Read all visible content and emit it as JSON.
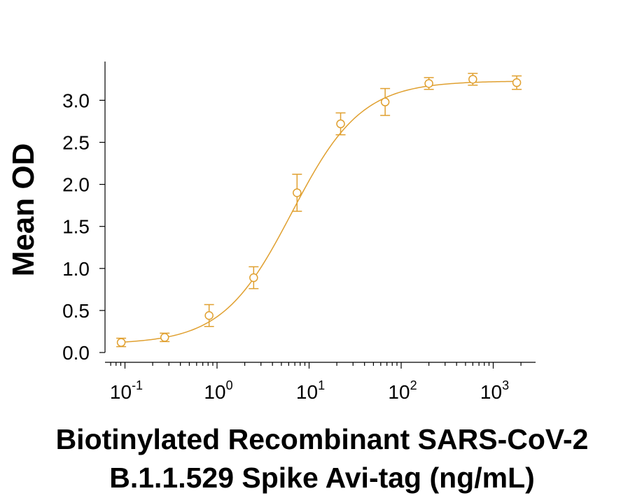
{
  "chart_data": {
    "type": "scatter",
    "title": "",
    "xlabel_lines": [
      "Biotinylated Recombinant SARS-CoV-2",
      "B.1.1.529 Spike Avi-tag (ng/mL)"
    ],
    "ylabel": "Mean OD",
    "x_scale": "log",
    "xlim": [
      0.06,
      3000
    ],
    "ylim": [
      0,
      3.5
    ],
    "x_ticks": [
      {
        "value": 0.1,
        "base": "10",
        "exp": "-1"
      },
      {
        "value": 1,
        "base": "10",
        "exp": "0"
      },
      {
        "value": 10,
        "base": "10",
        "exp": "1"
      },
      {
        "value": 100,
        "base": "10",
        "exp": "2"
      },
      {
        "value": 1000,
        "base": "10",
        "exp": "3"
      }
    ],
    "y_ticks": [
      "0.0",
      "0.5",
      "1.0",
      "1.5",
      "2.0",
      "2.5",
      "3.0"
    ],
    "grid": false,
    "color": "#E0A030",
    "series": [
      {
        "points": [
          {
            "x": 0.091,
            "y": 0.12,
            "err": 0.05
          },
          {
            "x": 0.27,
            "y": 0.18,
            "err": 0.05
          },
          {
            "x": 0.82,
            "y": 0.44,
            "err": 0.13
          },
          {
            "x": 2.5,
            "y": 0.89,
            "err": 0.13
          },
          {
            "x": 7.4,
            "y": 1.9,
            "err": 0.22
          },
          {
            "x": 22,
            "y": 2.72,
            "err": 0.13
          },
          {
            "x": 67,
            "y": 2.98,
            "err": 0.16
          },
          {
            "x": 200,
            "y": 3.2,
            "err": 0.07
          },
          {
            "x": 600,
            "y": 3.25,
            "err": 0.07
          },
          {
            "x": 1800,
            "y": 3.21,
            "err": 0.08
          }
        ],
        "fit": {
          "model": "4PL",
          "bottom": 0.1,
          "top": 3.23,
          "ec50": 6.5,
          "hill": 1.15
        }
      }
    ]
  }
}
